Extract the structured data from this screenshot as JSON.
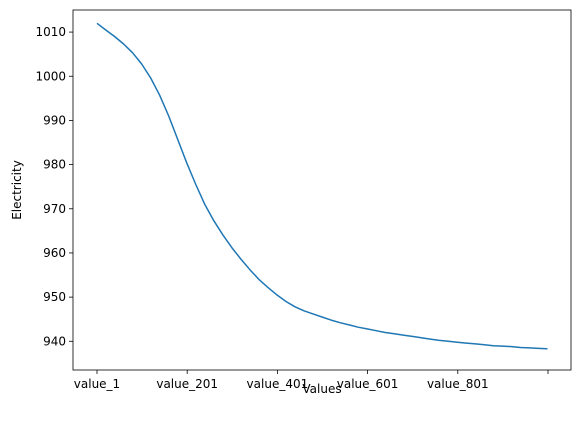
{
  "chart_data": {
    "type": "line",
    "title": "",
    "xlabel": "Values",
    "ylabel": "Electricity",
    "x_tick_labels": [
      "value_1",
      "value_201",
      "value_401",
      "value_601",
      "value_801",
      ""
    ],
    "x_tick_indices": [
      1,
      201,
      401,
      601,
      801,
      1001
    ],
    "x_range": [
      1,
      1001
    ],
    "yticks": [
      940,
      950,
      960,
      970,
      980,
      990,
      1000,
      1010
    ],
    "ylim": [
      933.5,
      1015
    ],
    "grid": false,
    "legend": "none",
    "series": [
      {
        "color": "#1f77b4",
        "x": [
          1,
          20,
          40,
          60,
          80,
          100,
          120,
          140,
          160,
          180,
          200,
          220,
          240,
          260,
          280,
          300,
          320,
          340,
          360,
          380,
          400,
          420,
          440,
          460,
          480,
          500,
          520,
          540,
          560,
          580,
          600,
          620,
          640,
          660,
          680,
          700,
          720,
          740,
          760,
          780,
          800,
          820,
          840,
          860,
          880,
          900,
          920,
          940,
          960,
          980,
          1000
        ],
        "values": [
          1012.0,
          1010.5,
          1009.0,
          1007.3,
          1005.3,
          1002.8,
          999.6,
          995.7,
          991.0,
          985.7,
          980.4,
          975.5,
          971.0,
          967.3,
          964.1,
          961.2,
          958.6,
          956.2,
          954.0,
          952.2,
          950.5,
          949.0,
          947.8,
          946.9,
          946.2,
          945.5,
          944.8,
          944.2,
          943.7,
          943.2,
          942.8,
          942.4,
          942.0,
          941.7,
          941.4,
          941.1,
          940.8,
          940.5,
          940.2,
          940.0,
          939.8,
          939.6,
          939.4,
          939.2,
          939.0,
          938.9,
          938.8,
          938.6,
          938.5,
          938.4,
          938.3
        ]
      }
    ]
  }
}
